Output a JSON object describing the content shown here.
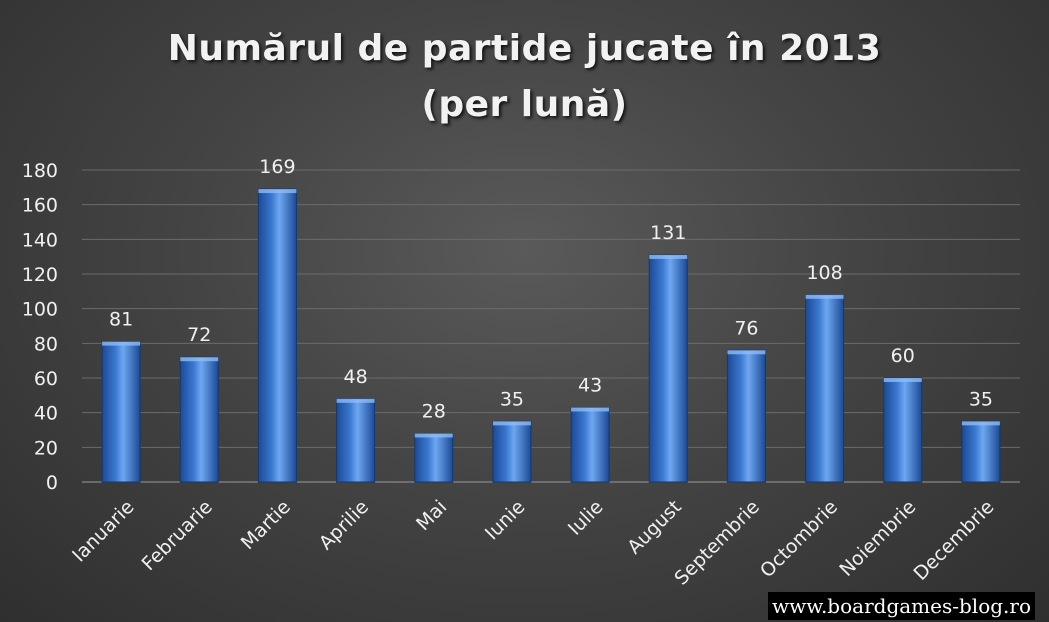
{
  "title_line1": "Numărul de partide jucate în 2013",
  "title_line2": "(per lună)",
  "watermark": "www.boardgames-blog.ro",
  "colors": {
    "bar_top": "#6ea7f0",
    "bar_mid": "#3a78d0",
    "bar_bottom": "#1c4a96",
    "grid": "#6b6b6b",
    "text": "#f0f0f0"
  },
  "chart_data": {
    "type": "bar",
    "title": "Numărul de partide jucate în 2013 (per lună)",
    "categories": [
      "Ianuarie",
      "Februarie",
      "Martie",
      "Aprilie",
      "Mai",
      "Iunie",
      "Iulie",
      "August",
      "Septembrie",
      "Octombrie",
      "Noiembrie",
      "Decembrie"
    ],
    "values": [
      81,
      72,
      169,
      48,
      28,
      35,
      43,
      131,
      76,
      108,
      60,
      35
    ],
    "ylim": [
      0,
      180
    ],
    "yticks": [
      0,
      20,
      40,
      60,
      80,
      100,
      120,
      140,
      160,
      180
    ],
    "grid": true,
    "data_labels": true
  }
}
